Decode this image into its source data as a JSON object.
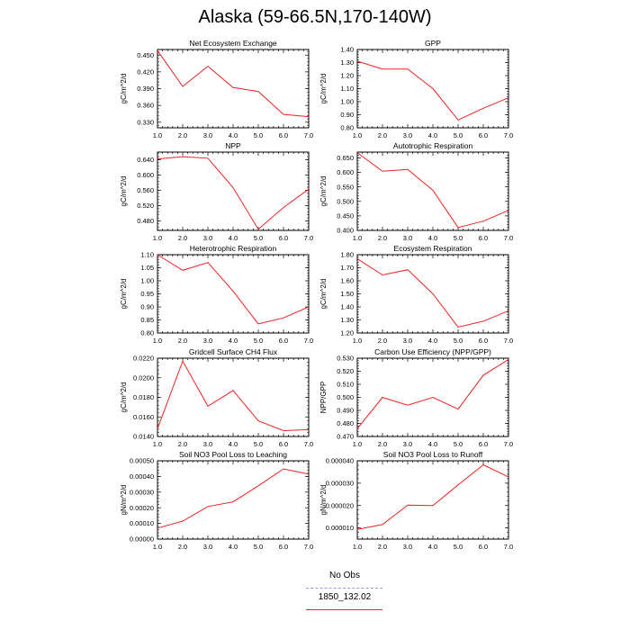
{
  "title": "Alaska (59-66.5N,170-140W)",
  "legend": [
    {
      "label": "No Obs",
      "color": "#9999ee",
      "dashed": true
    },
    {
      "label": "1850_132.02",
      "color": "#ee2222",
      "dashed": false
    }
  ],
  "chart_data": [
    {
      "type": "line",
      "title": "Net Ecosystem Exchange",
      "ylabel": "gC/m^2/d",
      "x": [
        1,
        2,
        3,
        4,
        5,
        6,
        7
      ],
      "y": [
        0.458,
        0.394,
        0.43,
        0.392,
        0.385,
        0.344,
        0.34
      ],
      "xlim": [
        1,
        7
      ],
      "ylim": [
        0.32,
        0.46
      ],
      "yticks": [
        0.33,
        0.36,
        0.39,
        0.42,
        0.45
      ],
      "ytick_labels": [
        "0.330",
        "0.360",
        "0.390",
        "0.420",
        "0.450"
      ],
      "series_color": "#ee2222"
    },
    {
      "type": "line",
      "title": "GPP",
      "ylabel": "gC/m^2/d",
      "x": [
        1,
        2,
        3,
        4,
        5,
        6,
        7
      ],
      "y": [
        1.31,
        1.25,
        1.25,
        1.1,
        0.86,
        0.95,
        1.03
      ],
      "xlim": [
        1,
        7
      ],
      "ylim": [
        0.8,
        1.4
      ],
      "yticks": [
        0.8,
        0.9,
        1.0,
        1.1,
        1.2,
        1.3,
        1.4
      ],
      "ytick_labels": [
        "0.80",
        "0.90",
        "1.00",
        "1.10",
        "1.20",
        "1.30",
        "1.40"
      ],
      "series_color": "#ee2222"
    },
    {
      "type": "line",
      "title": "NPP",
      "ylabel": "gC/m^2/d",
      "x": [
        1,
        2,
        3,
        4,
        5,
        6,
        7
      ],
      "y": [
        0.642,
        0.648,
        0.644,
        0.567,
        0.458,
        0.515,
        0.563
      ],
      "xlim": [
        1,
        7
      ],
      "ylim": [
        0.455,
        0.66
      ],
      "yticks": [
        0.48,
        0.52,
        0.56,
        0.6,
        0.64
      ],
      "ytick_labels": [
        "0.480",
        "0.520",
        "0.560",
        "0.600",
        "0.640"
      ],
      "series_color": "#ee2222"
    },
    {
      "type": "line",
      "title": "Autotrophic Respiration",
      "ylabel": "gC/m^2/d",
      "x": [
        1,
        2,
        3,
        4,
        5,
        6,
        7
      ],
      "y": [
        0.668,
        0.604,
        0.61,
        0.538,
        0.41,
        0.432,
        0.469
      ],
      "xlim": [
        1,
        7
      ],
      "ylim": [
        0.4,
        0.67
      ],
      "yticks": [
        0.4,
        0.45,
        0.5,
        0.55,
        0.6,
        0.65
      ],
      "ytick_labels": [
        "0.400",
        "0.450",
        "0.500",
        "0.550",
        "0.600",
        "0.650"
      ],
      "series_color": "#ee2222"
    },
    {
      "type": "line",
      "title": "Heterotrophic Respiration",
      "ylabel": "gC/m^2/d",
      "x": [
        1,
        2,
        3,
        4,
        5,
        6,
        7
      ],
      "y": [
        1.1,
        1.04,
        1.07,
        0.96,
        0.835,
        0.858,
        0.9
      ],
      "xlim": [
        1,
        7
      ],
      "ylim": [
        0.8,
        1.1
      ],
      "yticks": [
        0.8,
        0.85,
        0.9,
        0.95,
        1.0,
        1.05,
        1.1
      ],
      "ytick_labels": [
        "0.80",
        "0.85",
        "0.90",
        "0.95",
        "1.00",
        "1.05",
        "1.10"
      ],
      "series_color": "#ee2222"
    },
    {
      "type": "line",
      "title": "Ecosystem Respiration",
      "ylabel": "gC/m^2/d",
      "x": [
        1,
        2,
        3,
        4,
        5,
        6,
        7
      ],
      "y": [
        1.77,
        1.645,
        1.685,
        1.5,
        1.245,
        1.29,
        1.37
      ],
      "xlim": [
        1,
        7
      ],
      "ylim": [
        1.2,
        1.8
      ],
      "yticks": [
        1.2,
        1.3,
        1.4,
        1.5,
        1.6,
        1.7,
        1.8
      ],
      "ytick_labels": [
        "1.20",
        "1.30",
        "1.40",
        "1.50",
        "1.60",
        "1.70",
        "1.80"
      ],
      "series_color": "#ee2222"
    },
    {
      "type": "line",
      "title": "Gridcell Surface CH4 Flux",
      "ylabel": "gC/m^2/d",
      "x": [
        1,
        2,
        3,
        4,
        5,
        6,
        7
      ],
      "y": [
        0.0148,
        0.0217,
        0.0171,
        0.0187,
        0.0156,
        0.0146,
        0.0147
      ],
      "xlim": [
        1,
        7
      ],
      "ylim": [
        0.014,
        0.022
      ],
      "yticks": [
        0.014,
        0.016,
        0.018,
        0.02,
        0.022
      ],
      "ytick_labels": [
        "0.0140",
        "0.0160",
        "0.0180",
        "0.0200",
        "0.0220"
      ],
      "series_color": "#ee2222"
    },
    {
      "type": "line",
      "title": "Carbon Use Efficiency (NPP/GPP)",
      "ylabel": "NPP/GPP",
      "x": [
        1,
        2,
        3,
        4,
        5,
        6,
        7
      ],
      "y": [
        0.476,
        0.5,
        0.494,
        0.5,
        0.491,
        0.517,
        0.529
      ],
      "xlim": [
        1,
        7
      ],
      "ylim": [
        0.47,
        0.53
      ],
      "yticks": [
        0.47,
        0.48,
        0.49,
        0.5,
        0.51,
        0.52,
        0.53
      ],
      "ytick_labels": [
        "0.470",
        "0.480",
        "0.490",
        "0.500",
        "0.510",
        "0.520",
        "0.530"
      ],
      "series_color": "#ee2222"
    },
    {
      "type": "line",
      "title": "Soil NO3 Pool Loss to Leaching",
      "ylabel": "gN/m^2/d",
      "x": [
        1,
        2,
        3,
        4,
        5,
        6,
        7
      ],
      "y": [
        7e-05,
        0.000115,
        0.000208,
        0.000238,
        0.00034,
        0.000448,
        0.000415
      ],
      "xlim": [
        1,
        7
      ],
      "ylim": [
        0,
        0.0005
      ],
      "yticks": [
        0,
        0.0001,
        0.0002,
        0.0003,
        0.0004,
        0.0005
      ],
      "ytick_labels": [
        "0.00000",
        "0.00010",
        "0.00020",
        "0.00030",
        "0.00040",
        "0.00050"
      ],
      "series_color": "#ee2222"
    },
    {
      "type": "line",
      "title": "Soil NO3 Pool Loss to Runoff",
      "ylabel": "gN/m^2/d",
      "x": [
        1,
        2,
        3,
        4,
        5,
        6,
        7
      ],
      "y": [
        9.3e-06,
        1.15e-05,
        2.02e-05,
        2e-05,
        2.92e-05,
        3.82e-05,
        3.28e-05
      ],
      "xlim": [
        1,
        7
      ],
      "ylim": [
        5e-06,
        4e-05
      ],
      "yticks": [
        1e-05,
        2e-05,
        3e-05,
        4e-05
      ],
      "ytick_labels": [
        "0.000010",
        "0.000020",
        "0.000030",
        "0.000040"
      ],
      "series_color": "#ee2222"
    }
  ],
  "xticks": [
    1,
    2,
    3,
    4,
    5,
    6,
    7
  ],
  "xtick_labels": [
    "1.0",
    "2.0",
    "3.0",
    "4.0",
    "5.0",
    "6.0",
    "7.0"
  ]
}
